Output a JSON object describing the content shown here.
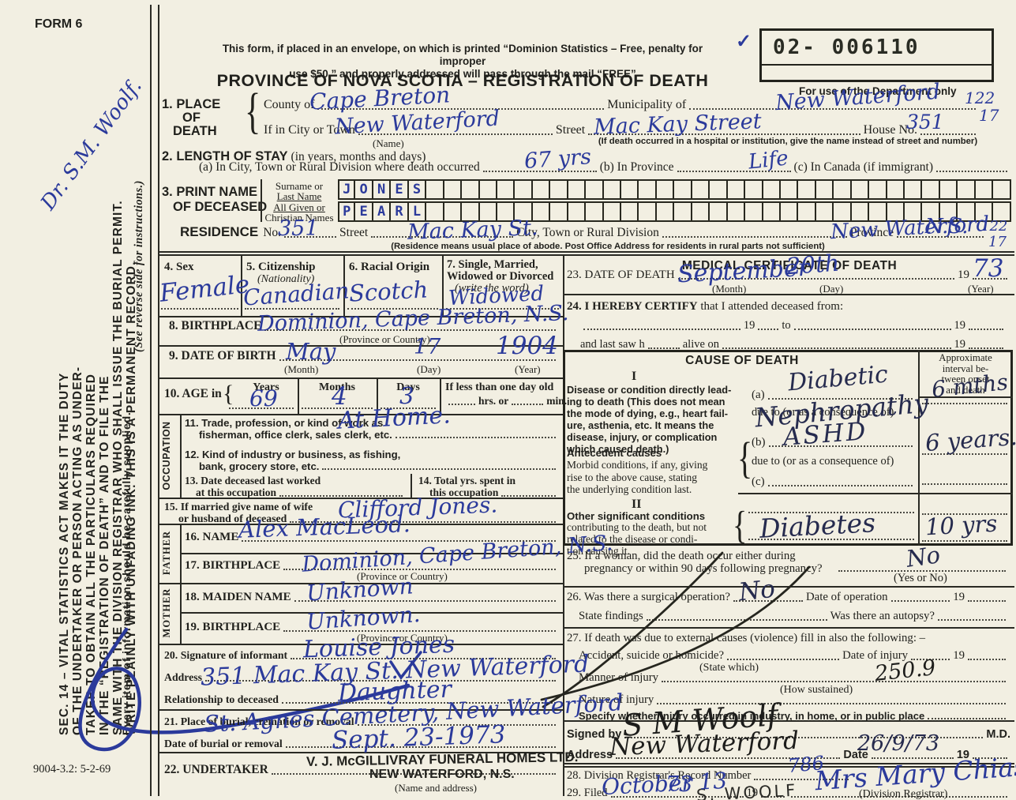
{
  "glyphs": {
    "brace": "{",
    "check": "✓"
  },
  "margin": {
    "form_no": "FORM 6",
    "doctor": "Dr. S.M. Woolf.",
    "legal_lines": [
      "SEC. 14 – VITAL STATISTICS ACT MAKES IT THE DUTY",
      "OF THE UNDERTAKER OR PERSON ACTING AS UNDER-",
      "TAKER TO OBTAIN ALL THE PARTICULARS REQUIRED",
      "IN THE “REGISTRATION OF DEATH” AND TO FILE THE",
      "SAME WITH THE DIVISION REGISTRAR WHO SHALL ISSUE THE BURIAL PERMIT.",
      "WRITE PLAINLY WITH UNFADING INK. THIS IS A PERMANENT RECORD."
    ],
    "supplied": "Every item of information should be carefully supplied.",
    "see_reverse": "(See reverse side for instructions.)",
    "print_code": "9004-3.2: 5-2-69"
  },
  "header": {
    "notice1": "This form, if placed in an envelope, on which is printed “Dominion Statistics – Free, penalty for improper",
    "notice2": "use $50,” and properly addressed will pass through the mail “FREE”",
    "title": "PROVINCE OF NOVA SCOTIA – REGISTRATION OF DEATH",
    "serial": "02- 006110",
    "dept_only": "For use of the Department only"
  },
  "s1": {
    "no1": "1. PLACE",
    "no2": "OF",
    "no3": "DEATH",
    "county_l": "County of",
    "county": "Cape Breton",
    "mun_l": "Municipality of",
    "mun": "New Waterford",
    "city_l": "If in City or Town",
    "city": "New Waterford",
    "name_n": "(Name)",
    "street_l": "Street",
    "street": "Mac Kay Street",
    "house_l": "House No.",
    "house": "351",
    "hosp_n": "(If death occurred in a hospital or institution, give the name instead of street and number)",
    "code1": "122",
    "code2": "17"
  },
  "s2": {
    "h": "2. LENGTH OF STAY",
    "hp": "(in years, months and days)",
    "a_l": "(a) In City, Town or Rural Division where death occurred",
    "a": "67 yrs",
    "b_l": "(b) In Province",
    "b": "Life",
    "c_l": "(c) In Canada (if immigrant)"
  },
  "s3": {
    "h1": "3. PRINT NAME",
    "h2": "OF DECEASED",
    "r1a": "Surname or",
    "r1b": "Last Name",
    "r2a": "All Given or",
    "r2b": "Christian Names",
    "surname": "JONES",
    "given": "PEARL"
  },
  "res": {
    "h": "RESIDENCE",
    "no_l": "No.",
    "no": "351",
    "street_l": "Street",
    "street": "Mac Kay St.",
    "div_l": "City, Town or Rural Division",
    "div": "New Waterford",
    "prov_l": "Province",
    "prov": "N.S.",
    "note": "(Residence means usual place of abode. Post Office Address for residents in rural parts not sufficient)",
    "code1": "122",
    "code2": "17"
  },
  "s4": {
    "l": "4. Sex",
    "v": "Female"
  },
  "s5": {
    "l": "5. Citizenship",
    "s": "(Nationality)",
    "v": "Canadian"
  },
  "s6": {
    "l": "6. Racial Origin",
    "v": "Scotch"
  },
  "s7": {
    "l1": "7. Single, Married,",
    "l2": "Widowed or Divorced",
    "s": "(write the word)",
    "v": "Widowed"
  },
  "s8": {
    "l": "8. BIRTHPLACE",
    "s": "(Province or Country)",
    "v": "Dominion, Cape Breton, N.S."
  },
  "s9": {
    "l": "9. DATE OF BIRTH",
    "m": "May",
    "d": "17",
    "y": "1904",
    "sm": "(Month)",
    "sd": "(Day)",
    "sy": "(Year)"
  },
  "s10": {
    "l": "10. AGE in",
    "yl": "Years",
    "y": "69",
    "ml": "Months",
    "m": "4",
    "dl": "Days",
    "d": "3",
    "less": "If less than one day old",
    "hrs": "hrs. or",
    "min": "min."
  },
  "occ": {
    "side": "OCCUPATION",
    "l11a": "11. Trade, profession, or kind of work as",
    "l11b": "fisherman, office clerk, sales clerk, etc.",
    "v11": "At Home.",
    "l12a": "12. Kind of industry or business, as fishing,",
    "l12b": "bank, grocery store, etc.",
    "l13a": "13. Date deceased last worked",
    "l13b": "at this occupation",
    "l14a": "14. Total yrs. spent in",
    "l14b": "this occupation"
  },
  "s15": {
    "l1": "15. If married give name of wife",
    "l2": "or husband of deceased",
    "v": "Clifford Jones."
  },
  "fa": {
    "side": "FATHER",
    "l16": "16. NAME",
    "v16": "Alex MacLeod.",
    "l17": "17. BIRTHPLACE",
    "s17": "(Province or Country)",
    "v17": "Dominion, Cape Breton, N.S."
  },
  "mo": {
    "side": "MOTHER",
    "l18": "18. MAIDEN NAME",
    "v18": "Unknown",
    "l19": "19. BIRTHPLACE",
    "s19": "(Province or Country)",
    "v19": "Unknown."
  },
  "s20": {
    "l": "20. Signature of informant",
    "v": "Louise Jones",
    "al": "Address",
    "av": "351 Mac Kay St. New Waterford",
    "rl": "Relationship to deceased",
    "rv": "Daughter"
  },
  "s21": {
    "l": "21. Place of burial, cremation or removal",
    "v": "St. Agnes Cemetery, New Waterford",
    "dl": "Date of burial or removal",
    "dv": "Sept. 23-1973"
  },
  "s22": {
    "l": "22. UNDERTAKER",
    "stamp1": "V. J. McGILLIVRAY FUNERAL HOMES LTD.",
    "stamp2": "NEW WATERFORD, N.S.",
    "s": "(Name and address)"
  },
  "med": {
    "title": "MEDICAL CERTIFICATE OF DEATH",
    "s23": {
      "l": "23. DATE OF DEATH",
      "m": "September",
      "d": "20th",
      "p19": "19",
      "y": "73",
      "sm": "(Month)",
      "sd": "(Day)",
      "sy": "(Year)"
    },
    "s24": {
      "l1": "24. I HEREBY CERTIFY",
      "l2": "that I attended deceased from:",
      "p19": "19",
      "to": "to",
      "l3": "and last saw h",
      "l4": "alive on"
    },
    "cause": {
      "title": "CAUSE OF DEATH",
      "r1": "I",
      "r2": "II",
      "d1": "Disease or condition directly lead-",
      "d2": "ing to death (This does not mean",
      "d3": "the mode of dying, e.g., heart fail-",
      "d4": "ure, asthenia, etc. It means the",
      "d5": "disease, injury, or complication",
      "d6": "which caused death.)",
      "a_l": "(a)",
      "a": "Diabetic",
      "adue": "due to (or as a consequence of)",
      "a2": "Nephropathy",
      "ant1": "Antecedent causes",
      "ant2": "Morbid conditions, if any, giving",
      "ant3": "rise to the above cause, stating",
      "ant4": "the underlying condition last.",
      "b_l": "(b)",
      "b": "ASHD",
      "bdue": "due to (or as a consequence of)",
      "c_l": "(c)",
      "o1": "Other significant conditions",
      "o2": "contributing to the death, but not",
      "o3": "related to the disease or condi-",
      "o4": "tion causing it.",
      "o": "Diabetes",
      "ih1": "Approximate",
      "ih2": "interval be-",
      "ih3": "tween onset",
      "ih4": "and death",
      "ia": "6 mths",
      "ib": "6 years.",
      "io": "10 yrs"
    },
    "s25": {
      "l1": "25. If a woman, did the death occur either during",
      "l2": "pregnancy or within 90 days following pregnancy?",
      "v": "No",
      "s": "(Yes or No)"
    },
    "s26": {
      "l": "26. Was there a surgical operation?",
      "v": "No",
      "dl": "Date of operation",
      "p19": "19",
      "fl": "State findings",
      "au": "Was there an autopsy?"
    },
    "s27": {
      "l": "27. If death was due to external causes (violence) fill in also the following: –",
      "a": "Accident, suicide or homicide?",
      "sw": "(State which)",
      "di": "Date of injury",
      "p19": "19",
      "m": "Manner of injury",
      "hs": "(How sustained)",
      "code": "250.9",
      "n": "Nature of injury",
      "sp": "Specify whether injury occurred in industry, in home, or in public place"
    },
    "sig": {
      "l": "Signed by",
      "v": "S M Woolf",
      "md": "M.D.",
      "al": "Address",
      "av": "New Waterford",
      "dl": "Date",
      "dv": "26/9/73",
      "p19": "19"
    },
    "s28": {
      "l": "28. Division Registrar's Record Number",
      "v": "786"
    },
    "s29": {
      "l": "29. Filed",
      "v1": "October 13",
      "p19": "19",
      "v2": "73",
      "reg": "Mrs Mary Chiasson",
      "s": "(Division Registrar)",
      "note": "S. WOOLF"
    }
  }
}
